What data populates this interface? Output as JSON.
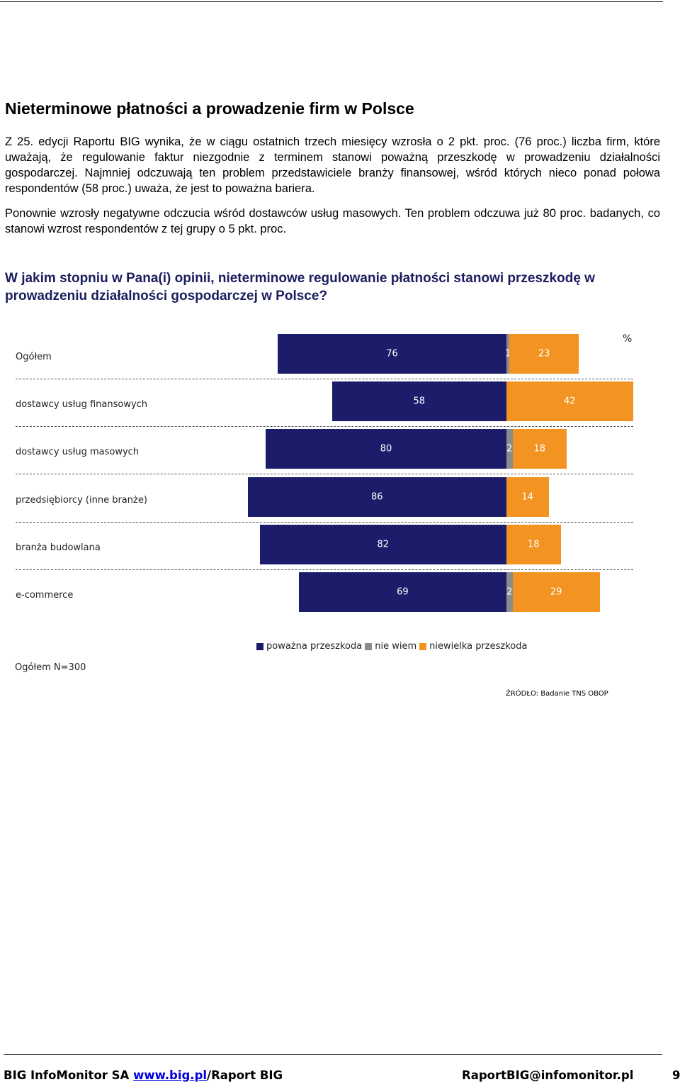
{
  "title": "Nieterminowe płatności a prowadzenie firm w Polsce",
  "paragraphs": [
    "Z 25. edycji Raportu BIG wynika, że w ciągu ostatnich trzech miesięcy wzrosła o 2 pkt. proc. (76 proc.) liczba firm, które uważają, że regulowanie faktur niezgodnie z terminem stanowi poważną przeszkodę w prowadzeniu działalności gospodarczej. Najmniej odczuwają ten problem przedstawiciele branży finansowej, wśród których nieco ponad połowa respondentów (58 proc.) uważa, że jest to poważna bariera.",
    "Ponownie wzrosły negatywne odczucia wśród dostawców usług masowych. Ten problem odczuwa już 80 proc. badanych, co stanowi wzrost respondentów z tej grupy o 5 pkt. proc."
  ],
  "question": "W jakim stopniu w Pana(i) opinii, nieterminowe regulowanie płatności stanowi przeszkodę w prowadzeniu działalności gospodarczej w Polsce?",
  "chart_data": {
    "type": "bar",
    "orientation": "horizontal-diverging",
    "unit_label": "%",
    "categories": [
      "Ogółem",
      "dostawcy usług finansowych",
      "dostawcy usług masowych",
      "przedsiębiorcy (inne branże)",
      "branża budowlana",
      "e-commerce"
    ],
    "series": [
      {
        "name": "poważna przeszkoda",
        "values": [
          76,
          58,
          80,
          86,
          82,
          69
        ],
        "color": "#1b1d6b"
      },
      {
        "name": "nie wiem",
        "values": [
          1,
          0,
          2,
          0,
          0,
          2
        ],
        "color": "#8c8c8c"
      },
      {
        "name": "niewielka przeszkoda",
        "values": [
          23,
          42,
          18,
          14,
          18,
          29
        ],
        "color": "#f39321"
      }
    ],
    "legend_position": "bottom",
    "sample_note": "Ogółem N=300",
    "source": "ŹRÓDŁO: Badanie TNS OBOP"
  },
  "footer": {
    "org": "BIG InfoMonitor SA",
    "link": "www.big.pl",
    "link_suffix": "/Raport BIG",
    "email": "RaportBIG@infomonitor.pl",
    "page": "9"
  }
}
